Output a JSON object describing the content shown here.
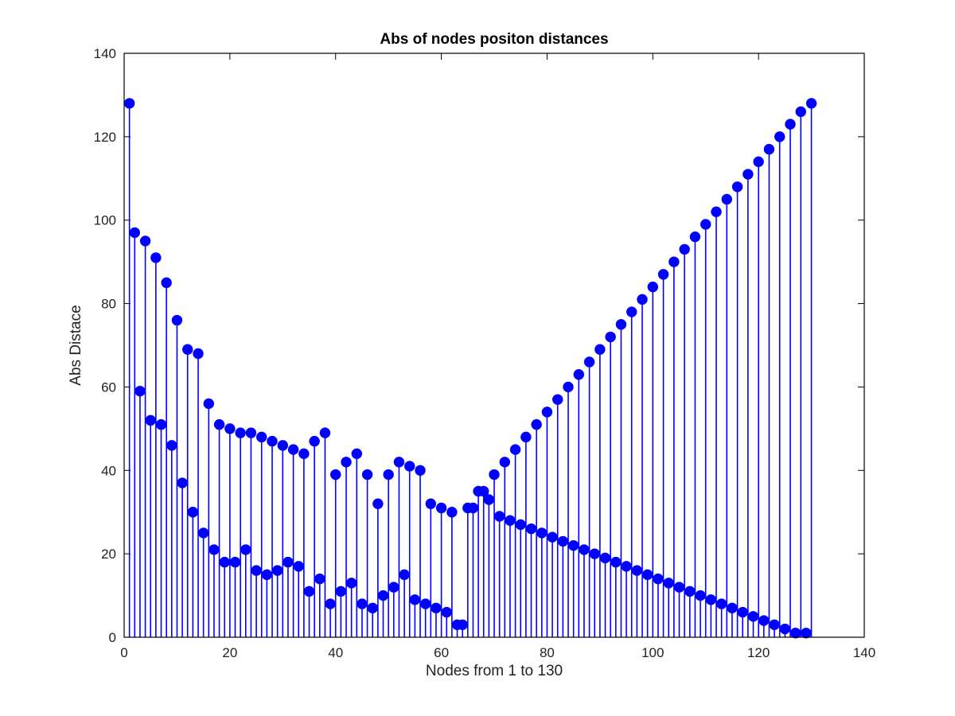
{
  "chart_data": {
    "type": "stem",
    "title": "Abs of nodes positon distances",
    "xlabel": "Nodes from 1 to 130",
    "ylabel": "Abs Distace",
    "xlim": [
      0,
      140
    ],
    "ylim": [
      0,
      140
    ],
    "xticks": [
      0,
      20,
      40,
      60,
      80,
      100,
      120,
      140
    ],
    "yticks": [
      0,
      20,
      40,
      60,
      80,
      100,
      120,
      140
    ],
    "grid": false,
    "color": "#0000ff",
    "x": [
      1,
      2,
      3,
      4,
      5,
      6,
      7,
      8,
      9,
      10,
      11,
      12,
      13,
      14,
      15,
      16,
      17,
      18,
      19,
      20,
      21,
      22,
      23,
      24,
      25,
      26,
      27,
      28,
      29,
      30,
      31,
      32,
      33,
      34,
      35,
      36,
      37,
      38,
      39,
      40,
      41,
      42,
      43,
      44,
      45,
      46,
      47,
      48,
      49,
      50,
      51,
      52,
      53,
      54,
      55,
      56,
      57,
      58,
      59,
      60,
      61,
      62,
      63,
      64,
      65,
      66,
      67,
      68,
      69,
      70,
      71,
      72,
      73,
      74,
      75,
      76,
      77,
      78,
      79,
      80,
      81,
      82,
      83,
      84,
      85,
      86,
      87,
      88,
      89,
      90,
      91,
      92,
      93,
      94,
      95,
      96,
      97,
      98,
      99,
      100,
      101,
      102,
      103,
      104,
      105,
      106,
      107,
      108,
      109,
      110,
      111,
      112,
      113,
      114,
      115,
      116,
      117,
      118,
      119,
      120,
      121,
      122,
      123,
      124,
      125,
      126,
      127,
      128,
      129,
      130
    ],
    "y": [
      128,
      97,
      59,
      95,
      52,
      91,
      51,
      85,
      46,
      76,
      37,
      69,
      30,
      68,
      25,
      56,
      21,
      51,
      18,
      50,
      18,
      49,
      21,
      49,
      16,
      48,
      15,
      47,
      16,
      46,
      18,
      45,
      17,
      44,
      11,
      47,
      14,
      49,
      8,
      39,
      11,
      42,
      13,
      44,
      8,
      39,
      7,
      32,
      10,
      39,
      12,
      42,
      15,
      41,
      9,
      40,
      8,
      32,
      7,
      31,
      6,
      30,
      3,
      3,
      31,
      31,
      35,
      35,
      33,
      39,
      29,
      42,
      28,
      45,
      27,
      48,
      26,
      51,
      25,
      54,
      24,
      57,
      23,
      60,
      22,
      63,
      21,
      66,
      20,
      69,
      19,
      72,
      18,
      75,
      17,
      78,
      16,
      81,
      15,
      84,
      14,
      87,
      13,
      90,
      12,
      93,
      11,
      96,
      10,
      99,
      9,
      102,
      8,
      105,
      7,
      108,
      6,
      111,
      5,
      114,
      4,
      117,
      3,
      120,
      2,
      123,
      1,
      126,
      1,
      128
    ]
  }
}
